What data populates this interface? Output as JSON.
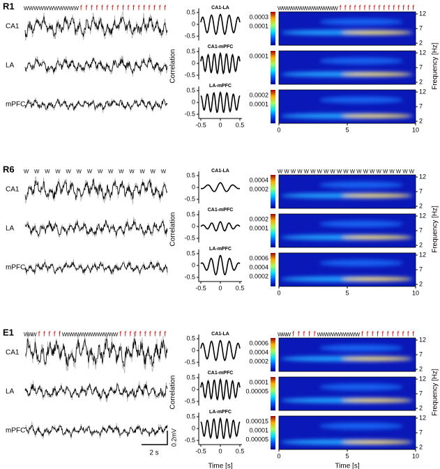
{
  "panels": [
    {
      "label": "R1",
      "trace_letters": [
        {
          "text": "wwwwwwwwwww",
          "color": "#222222"
        },
        {
          "text": "fffffffffffffffff",
          "color": "#d01010"
        }
      ],
      "spec_letters": [
        {
          "text": "wwwwwwwwwwwww",
          "color": "#222222"
        },
        {
          "text": "ffffffffffffffff",
          "color": "#d01010"
        }
      ],
      "traces": [
        "CA1",
        "LA",
        "mPFC"
      ],
      "correlations": [
        {
          "title": "CA1-LA",
          "yticks": [
            "0.5",
            "0",
            "-0.5"
          ]
        },
        {
          "title": "CA1-mPFC",
          "yticks": [
            "0.5",
            "0",
            "-0.5"
          ]
        },
        {
          "title": "LA-mPFC",
          "yticks": [
            "0.5",
            "0",
            "-0.5"
          ]
        }
      ],
      "spectrograms": [
        {
          "cbar_ticks": [
            "0.0003",
            "0.0001"
          ]
        },
        {
          "cbar_ticks": [
            "0.0001"
          ]
        },
        {
          "cbar_ticks": [
            "0.0002",
            "0.0001"
          ]
        }
      ]
    },
    {
      "label": "R6",
      "trace_letters": [
        {
          "text": "wwwwwwwwwwwwww",
          "color": "#222222"
        }
      ],
      "spec_letters": [
        {
          "text": "wwwwwwwwwwwwwwwwwwwww",
          "color": "#222222"
        }
      ],
      "traces": [
        "CA1",
        "LA",
        "mPFC"
      ],
      "correlations": [
        {
          "title": "CA1-LA",
          "yticks": [
            "0.5",
            "0",
            "-0.5"
          ]
        },
        {
          "title": "CA1-mPFC",
          "yticks": [
            "0.5",
            "0",
            "-0.5"
          ]
        },
        {
          "title": "LA-mPFC",
          "yticks": [
            "0.5",
            "0",
            "-0.5"
          ]
        }
      ],
      "spectrograms": [
        {
          "cbar_ticks": [
            "0.0004",
            "0.0002"
          ]
        },
        {
          "cbar_ticks": [
            "0.0002",
            "0.0001"
          ]
        },
        {
          "cbar_ticks": [
            "0.0006",
            "0.0004",
            "0.0002"
          ]
        }
      ]
    },
    {
      "label": "E1",
      "trace_letters": [
        {
          "text": "www",
          "color": "#222222"
        },
        {
          "text": "fffff",
          "color": "#d01010"
        },
        {
          "text": "wwwwwwwwwwww",
          "color": "#222222"
        },
        {
          "text": "ffffffffff",
          "color": "#d01010"
        }
      ],
      "spec_letters": [
        {
          "text": "www",
          "color": "#222222"
        },
        {
          "text": "fffff",
          "color": "#d01010"
        },
        {
          "text": "wwwwwwwww",
          "color": "#222222"
        },
        {
          "text": "fffffffffff",
          "color": "#d01010"
        }
      ],
      "traces": [
        "CA1",
        "LA",
        "mPFC"
      ],
      "correlations": [
        {
          "title": "CA1-LA",
          "yticks": [
            "0.5",
            "0",
            "-0.5"
          ]
        },
        {
          "title": "CA1-mPFC",
          "yticks": [
            "0.5",
            "0",
            "-0.5"
          ]
        },
        {
          "title": "LA-mPFC",
          "yticks": [
            "0.5",
            "0",
            "-0.5"
          ]
        }
      ],
      "spectrograms": [
        {
          "cbar_ticks": [
            "0.0006",
            "0.0004",
            "0.0002"
          ]
        },
        {
          "cbar_ticks": [
            "0.0001",
            "0.00005"
          ]
        },
        {
          "cbar_ticks": [
            "0.00015",
            "0.0001",
            "0.00005"
          ]
        }
      ]
    }
  ],
  "corr_xticks": [
    "-0.5",
    "0",
    "0.5"
  ],
  "spec_xticks": [
    "0",
    "5",
    "10"
  ],
  "freq_ticks": [
    "12",
    "7",
    "2"
  ],
  "correlation_label": "Correlation",
  "frequency_label": "Frequency [Hz]",
  "time_label": "Time [s]",
  "scale": {
    "time": "2 s",
    "voltage": "0.2mV"
  }
}
